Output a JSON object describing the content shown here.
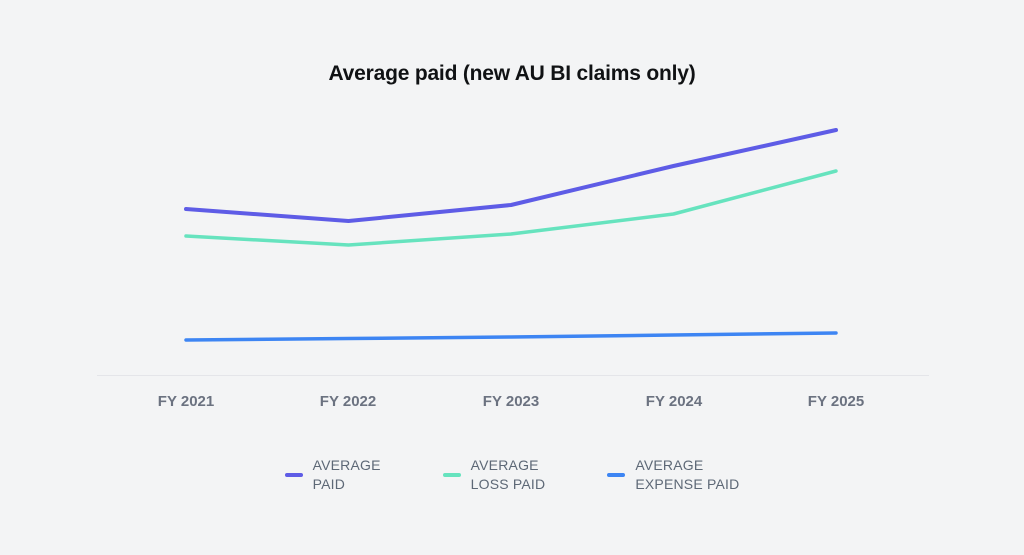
{
  "chart_data": {
    "type": "line",
    "title": "Average paid (new AU BI claims only)",
    "categories": [
      "FY 2021",
      "FY 2022",
      "FY 2023",
      "FY 2024",
      "FY 2025"
    ],
    "series": [
      {
        "name": "AVERAGE PAID",
        "color": "#5e5ce6",
        "values": [
          166,
          154,
          170,
          209,
          245
        ]
      },
      {
        "name": "AVERAGE LOSS PAID",
        "color": "#66e3be",
        "values": [
          139,
          130,
          141,
          161,
          204
        ]
      },
      {
        "name": "AVERAGE EXPENSE PAID",
        "color": "#3d85f3",
        "values": [
          35,
          36.5,
          38,
          40,
          42
        ]
      }
    ],
    "xlabel": "",
    "ylabel": "",
    "y_axis_visible": false,
    "grid": false,
    "legend_position": "bottom"
  },
  "legend": {
    "items": [
      {
        "line1": "AVERAGE",
        "line2": "PAID"
      },
      {
        "line1": "AVERAGE",
        "line2": "LOSS PAID"
      },
      {
        "line1": "AVERAGE",
        "line2": "EXPENSE PAID"
      }
    ]
  },
  "colors": {
    "background": "#f3f4f5",
    "axis_line": "#e4e5e9",
    "axis_label": "#6b7280",
    "legend_text": "#5d6876",
    "title_text": "#101214"
  }
}
